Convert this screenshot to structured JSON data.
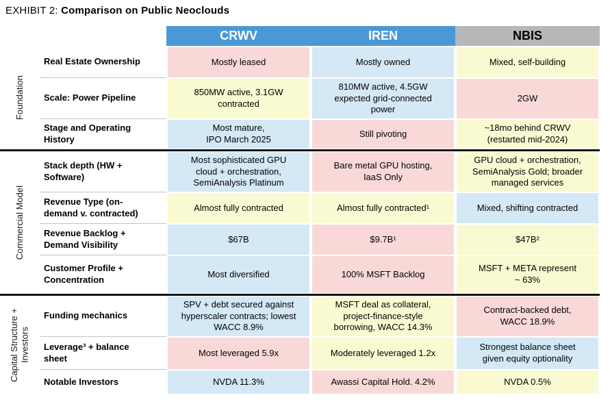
{
  "title": {
    "prefix": "EXHIBIT 2: ",
    "main": "Comparison on Public Neoclouds"
  },
  "colors": {
    "header_blue": "#4a99d6",
    "header_gray": "#b7b7b7",
    "pink": "#f9d9d8",
    "blue": "#d4e8f6",
    "yellow": "#fafad2"
  },
  "columns": [
    "CRWV",
    "IREN",
    "NBIS"
  ],
  "groups": [
    {
      "label": "Foundation",
      "rows": [
        {
          "label": "Real Estate Ownership",
          "cells": [
            {
              "text": "Mostly leased",
              "color": "pink"
            },
            {
              "text": "Mostly owned",
              "color": "blue"
            },
            {
              "text": "Mixed, self-building",
              "color": "yellow"
            }
          ]
        },
        {
          "label": "Scale: Power Pipeline",
          "cells": [
            {
              "text": "850MW active, 3.1GW\ncontracted",
              "color": "yellow"
            },
            {
              "text": "810MW active, 4.5GW\nexpected grid-connected\npower",
              "color": "blue"
            },
            {
              "text": "2GW",
              "color": "pink"
            }
          ]
        },
        {
          "label": "Stage and Operating\nHistory",
          "cells": [
            {
              "text": "Most mature,\nIPO March 2025",
              "color": "blue"
            },
            {
              "text": "Still pivoting",
              "color": "pink"
            },
            {
              "text": "~18mo behind CRWV\n(restarted mid-2024)",
              "color": "yellow"
            }
          ]
        }
      ]
    },
    {
      "label": "Commercial Model",
      "rows": [
        {
          "label": "Stack depth (HW +\nSoftware)",
          "cells": [
            {
              "text": "Most sophisticated GPU\ncloud + orchestration,\nSemiAnalysis Platinum",
              "color": "blue"
            },
            {
              "text": "Bare metal GPU hosting,\nIaaS Only",
              "color": "pink"
            },
            {
              "text": "GPU cloud + orchestration,\nSemiAnalysis Gold; broader\nmanaged services",
              "color": "yellow"
            }
          ]
        },
        {
          "label": "Revenue Type (on-\ndemand v. contracted)",
          "cells": [
            {
              "text": "Almost fully contracted",
              "color": "yellow"
            },
            {
              "text": "Almost fully contracted¹",
              "color": "yellow"
            },
            {
              "text": "Mixed, shifting contracted",
              "color": "blue"
            }
          ]
        },
        {
          "label": "Revenue Backlog +\nDemand Visibility",
          "cells": [
            {
              "text": "$67B",
              "color": "blue"
            },
            {
              "text": "$9.7B¹",
              "color": "pink"
            },
            {
              "text": "$47B²",
              "color": "yellow"
            }
          ]
        },
        {
          "label": "Customer Profile +\nConcentration",
          "cells": [
            {
              "text": "Most diversified",
              "color": "blue"
            },
            {
              "text": "100% MSFT Backlog",
              "color": "pink"
            },
            {
              "text": "MSFT + META represent\n~ 63%",
              "color": "yellow"
            }
          ]
        }
      ]
    },
    {
      "label": "Capital Structure +\nInvestors",
      "rows": [
        {
          "label": "Funding mechanics",
          "cells": [
            {
              "text": "SPV + debt secured against\nhyperscaler contracts; lowest\nWACC 8.9%",
              "color": "blue"
            },
            {
              "text": "MSFT deal as collateral,\nproject-finance-style\nborrowing, WACC 14.3%",
              "color": "yellow"
            },
            {
              "text": "Contract-backed debt,\nWACC 18.9%",
              "color": "pink"
            }
          ]
        },
        {
          "label": "Leverage³ + balance\nsheet",
          "cells": [
            {
              "text": "Most leveraged 5.9x",
              "color": "pink"
            },
            {
              "text": "Moderately leveraged 1.2x",
              "color": "yellow"
            },
            {
              "text": "Strongest balance sheet\ngiven equity optionality",
              "color": "blue"
            }
          ]
        },
        {
          "label": "Notable Investors",
          "cells": [
            {
              "text": "NVDA 11.3%",
              "color": "blue"
            },
            {
              "text": "Awassi Capital Hold. 4.2%",
              "color": "pink"
            },
            {
              "text": "NVDA 0.5%",
              "color": "yellow"
            }
          ]
        }
      ]
    }
  ]
}
